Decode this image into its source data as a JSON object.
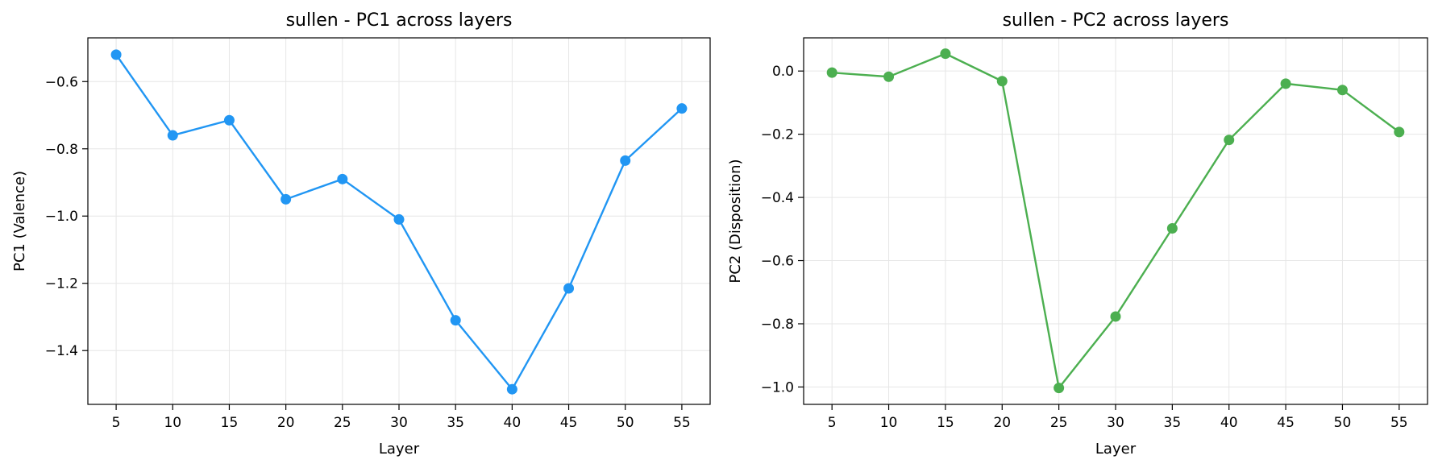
{
  "chart_data": [
    {
      "type": "line",
      "title": "sullen - PC1 across layers",
      "xlabel": "Layer",
      "ylabel": "PC1 (Valence)",
      "x": [
        5,
        10,
        15,
        20,
        25,
        30,
        35,
        40,
        45,
        50,
        55
      ],
      "xticks": [
        "5",
        "10",
        "15",
        "20",
        "25",
        "30",
        "35",
        "40",
        "45",
        "50",
        "55"
      ],
      "yticks": [
        -0.6,
        -0.8,
        -1.0,
        -1.2,
        -1.4
      ],
      "ytick_labels": [
        "−0.6",
        "−0.8",
        "−1.0",
        "−1.2",
        "−1.4"
      ],
      "xlim": [
        2.5,
        57.5
      ],
      "ylim": [
        -1.56,
        -0.47
      ],
      "grid": true,
      "series": [
        {
          "color": "#2196F3",
          "values": [
            -0.52,
            -0.76,
            -0.715,
            -0.95,
            -0.89,
            -1.01,
            -1.31,
            -1.515,
            -1.215,
            -0.835,
            -0.68
          ]
        }
      ]
    },
    {
      "type": "line",
      "title": "sullen - PC2 across layers",
      "xlabel": "Layer",
      "ylabel": "PC2 (Disposition)",
      "x": [
        5,
        10,
        15,
        20,
        25,
        30,
        35,
        40,
        45,
        50,
        55
      ],
      "xticks": [
        "5",
        "10",
        "15",
        "20",
        "25",
        "30",
        "35",
        "40",
        "45",
        "50",
        "55"
      ],
      "yticks": [
        0.0,
        -0.2,
        -0.4,
        -0.6,
        -0.8,
        -1.0
      ],
      "ytick_labels": [
        "0.0",
        "−0.2",
        "−0.4",
        "−0.6",
        "−0.8",
        "−1.0"
      ],
      "xlim": [
        2.5,
        57.5
      ],
      "ylim": [
        -1.055,
        0.105
      ],
      "grid": true,
      "series": [
        {
          "color": "#4CAF50",
          "values": [
            -0.005,
            -0.018,
            0.055,
            -0.032,
            -1.003,
            -0.777,
            -0.498,
            -0.218,
            -0.04,
            -0.06,
            -0.193
          ]
        }
      ]
    }
  ]
}
